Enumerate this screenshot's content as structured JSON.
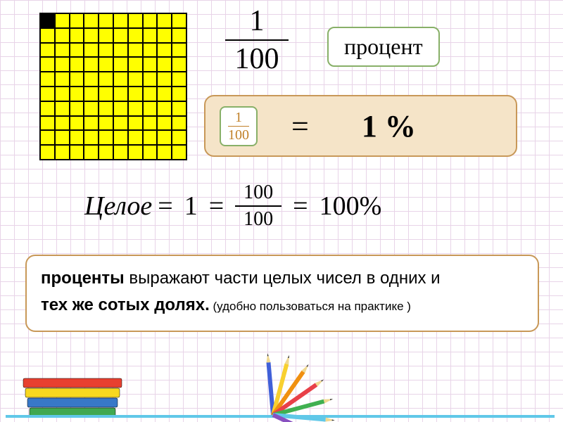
{
  "grid": {
    "rows": 10,
    "cols": 10,
    "cell_color": "#ffff00",
    "filled_color": "#000000",
    "border_color": "#000000",
    "filled_cells": [
      [
        0,
        0
      ]
    ]
  },
  "big_fraction": {
    "numerator": "1",
    "denominator": "100",
    "fontsize": 42
  },
  "percent_label": {
    "text": "процент",
    "border_color": "#88b068",
    "background": "#ffffff",
    "fontsize": 32
  },
  "equation_box": {
    "background": "#f5e4c8",
    "border_color": "#c89858",
    "small_fraction": {
      "numerator": "1",
      "denominator": "100",
      "color": "#c08028",
      "border_color": "#88b068"
    },
    "equals": "=",
    "result": "1 %",
    "result_fontsize": 44
  },
  "whole_equation": {
    "word": "Целое",
    "eq1": "=",
    "one": "1",
    "eq2": "=",
    "fraction": {
      "numerator": "100",
      "denominator": "100"
    },
    "eq3": "=",
    "result": "100%",
    "fontsize": 38
  },
  "definition": {
    "bold": "проценты",
    "line1": " выражают части целых чисел в одних и",
    "line2": "тех же сотых долях.",
    "note": " (удобно пользоваться на практике )",
    "border_color": "#c89858",
    "background": "#ffffff"
  },
  "decorations": {
    "books": [
      {
        "color": "#e84030",
        "y": 0
      },
      {
        "color": "#f8d820",
        "y": 14
      },
      {
        "color": "#3878c8",
        "y": 28
      },
      {
        "color": "#40a850",
        "y": 42
      }
    ],
    "pencils": [
      {
        "color": "#4060d8",
        "angle": 95
      },
      {
        "color": "#f8d030",
        "angle": 75
      },
      {
        "color": "#f09010",
        "angle": 55
      },
      {
        "color": "#e84048",
        "angle": 35
      },
      {
        "color": "#40b050",
        "angle": 15
      },
      {
        "color": "#60c8e8",
        "angle": -5
      },
      {
        "color": "#8850c0",
        "angle": -25
      }
    ],
    "ruler_color": "#60c8e8"
  },
  "page": {
    "grid_line_color": "#e8d4e8",
    "grid_size": 20
  }
}
